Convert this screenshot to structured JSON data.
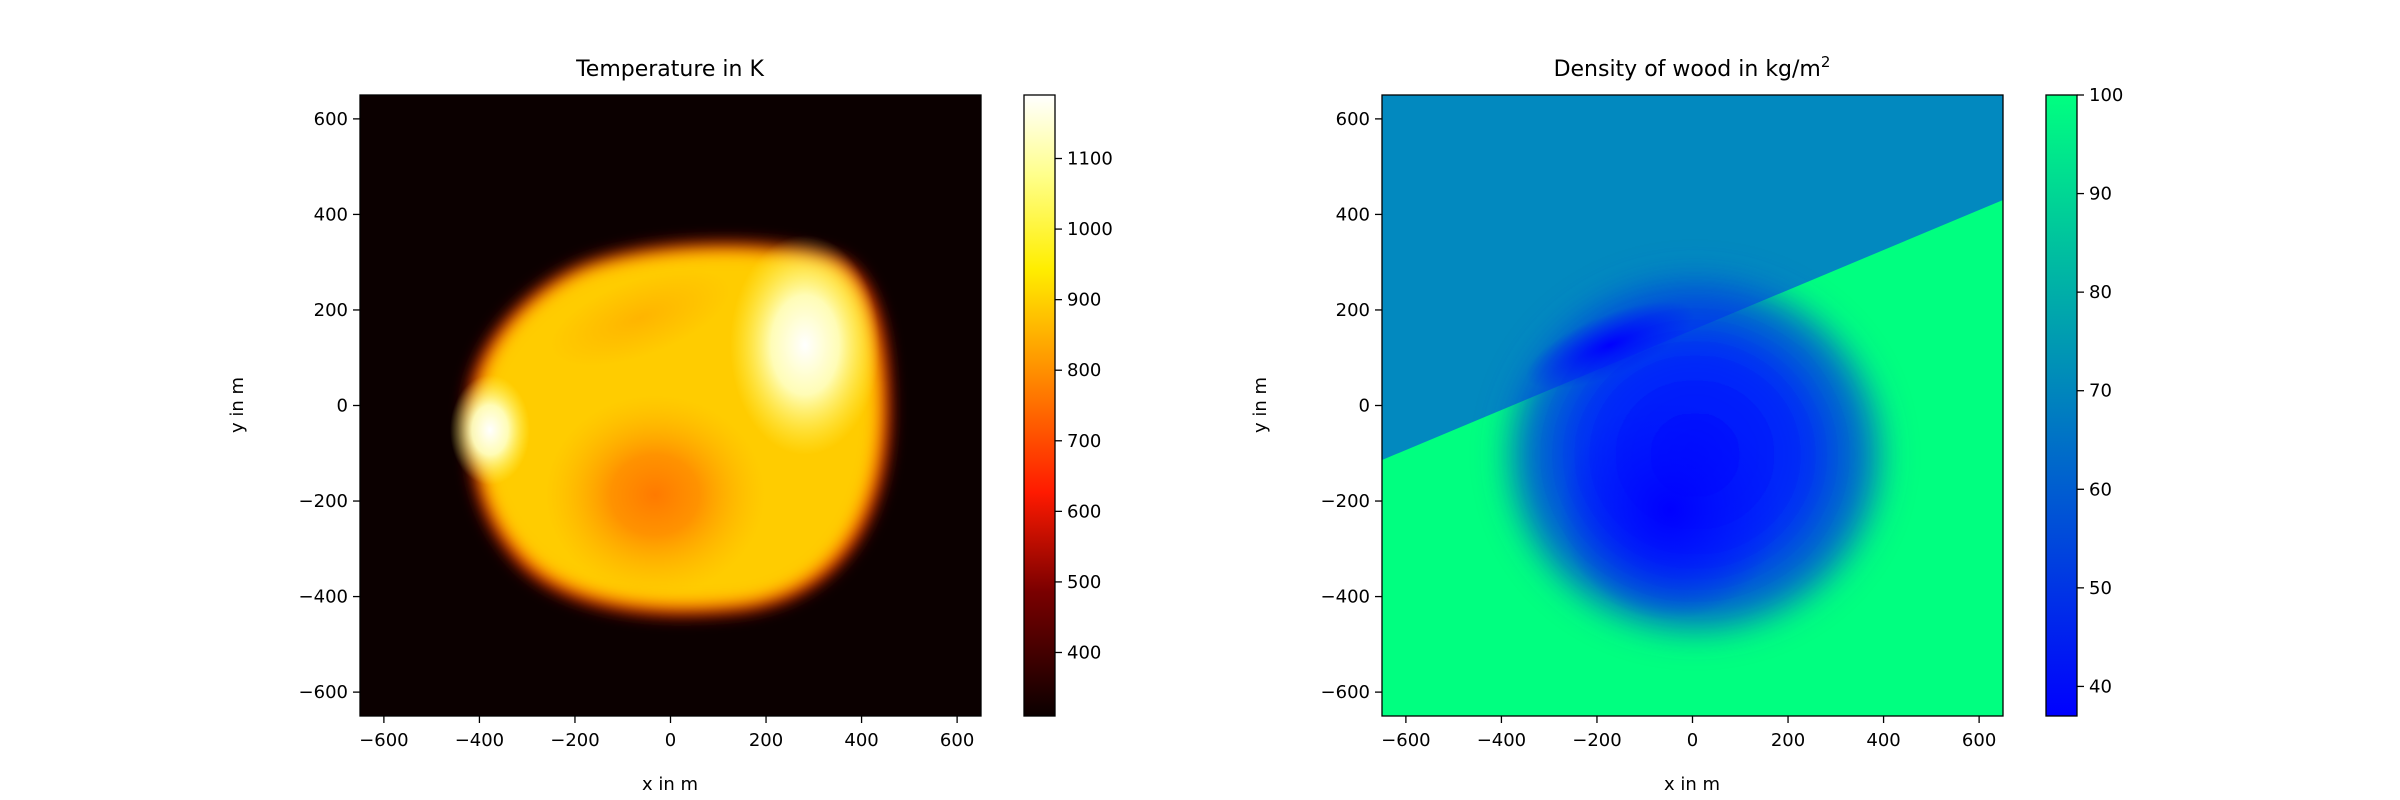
{
  "chart_data": [
    {
      "type": "heatmap",
      "title": "Temperature in K",
      "xlabel": "x in m",
      "ylabel": "y in m",
      "xlim": [
        -650,
        650
      ],
      "ylim": [
        -650,
        650
      ],
      "xticks": [
        -600,
        -400,
        -200,
        0,
        200,
        400,
        600
      ],
      "yticks": [
        -600,
        -400,
        -200,
        0,
        200,
        400,
        600
      ],
      "colormap": "hot",
      "colorbar": {
        "range": [
          310,
          1190
        ],
        "ticks": [
          400,
          500,
          600,
          700,
          800,
          900,
          1000,
          1100
        ]
      },
      "features": {
        "background_value": 310,
        "burn_region_center": [
          50,
          -30
        ],
        "burn_region_radius_x": [
          -450,
          460
        ],
        "burn_region_radius_y": [
          -430,
          350
        ],
        "hot_spot": {
          "x": 340,
          "y": 150,
          "value": 1190
        },
        "cool_core": {
          "x": -20,
          "y": -200,
          "value": 770
        }
      }
    },
    {
      "type": "heatmap",
      "title": "Density of wood in kg/m",
      "title_superscript": "2",
      "xlabel": "x in m",
      "ylabel": "y in m",
      "xlim": [
        -650,
        650
      ],
      "ylim": [
        -650,
        650
      ],
      "xticks": [
        -600,
        -400,
        -200,
        0,
        200,
        400,
        600
      ],
      "yticks": [
        -600,
        -400,
        -200,
        0,
        200,
        400,
        600
      ],
      "colormap": "winter",
      "colorbar": {
        "range": [
          37,
          100
        ],
        "ticks": [
          40,
          50,
          60,
          70,
          80,
          90,
          100
        ]
      },
      "features": {
        "upper_region_value": 70,
        "lower_region_value": 100,
        "boundary_line": {
          "x1": -650,
          "y1": -120,
          "x2": 650,
          "y2": 420
        },
        "burn_region_min": {
          "x": -50,
          "y": -250,
          "value": 37
        }
      }
    }
  ],
  "colors": {
    "hot_stops": [
      "#0b0000",
      "#7a0000",
      "#ff1a00",
      "#ff8c00",
      "#ffee00",
      "#ffff8a",
      "#ffffff"
    ],
    "winter_stops": [
      "#0000ff",
      "#0080bf",
      "#00ff80"
    ],
    "density_upper": "#0289bf",
    "density_lower": "#00ff80",
    "density_burned": "#0008ff"
  }
}
